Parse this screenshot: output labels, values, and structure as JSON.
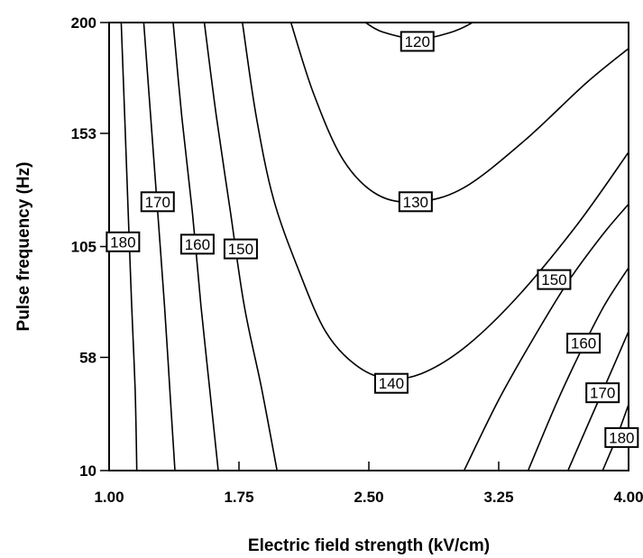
{
  "chart_data": {
    "type": "contour",
    "xlabel": "Electric field strength (kV/cm)",
    "ylabel": "Pulse frequency (Hz)",
    "xlim": [
      1.0,
      4.0
    ],
    "ylim": [
      10,
      200
    ],
    "x_ticks": [
      "1.00",
      "1.75",
      "2.50",
      "3.25",
      "4.00"
    ],
    "y_ticks": [
      "10",
      "58",
      "105",
      "153",
      "200"
    ],
    "grid": false,
    "contours": [
      {
        "level": "120",
        "label_at": [
          2.78,
          192
        ],
        "points": [
          [
            2.48,
            200
          ],
          [
            2.58,
            196
          ],
          [
            2.78,
            193
          ],
          [
            2.98,
            196
          ],
          [
            3.1,
            200
          ]
        ]
      },
      {
        "level": "130",
        "label_at": [
          2.77,
          124
        ],
        "points": [
          [
            2.05,
            200
          ],
          [
            2.18,
            170
          ],
          [
            2.35,
            142
          ],
          [
            2.55,
            127
          ],
          [
            2.78,
            124
          ],
          [
            3.05,
            130
          ],
          [
            3.4,
            150
          ],
          [
            3.75,
            174
          ],
          [
            4.0,
            189
          ]
        ]
      },
      {
        "level": "140",
        "label_at": [
          2.63,
          47
        ],
        "points": [
          [
            1.77,
            200
          ],
          [
            1.85,
            160
          ],
          [
            1.95,
            125
          ],
          [
            2.1,
            94
          ],
          [
            2.25,
            69
          ],
          [
            2.42,
            55
          ],
          [
            2.6,
            49
          ],
          [
            2.8,
            51
          ],
          [
            3.05,
            62
          ],
          [
            3.35,
            83
          ],
          [
            3.7,
            114
          ],
          [
            4.0,
            145
          ]
        ]
      },
      {
        "level": "150",
        "label_at": [
          1.76,
          104
        ],
        "points": [
          [
            1.55,
            200
          ],
          [
            1.62,
            160
          ],
          [
            1.7,
            120
          ],
          [
            1.78,
            80
          ],
          [
            1.88,
            45
          ],
          [
            1.97,
            10
          ]
        ]
      },
      {
        "level": "150",
        "label_at": [
          3.57,
          91
        ],
        "points": [
          [
            3.05,
            10
          ],
          [
            3.25,
            40
          ],
          [
            3.45,
            66
          ],
          [
            3.65,
            90
          ],
          [
            3.85,
            110
          ],
          [
            4.0,
            123
          ]
        ]
      },
      {
        "level": "160",
        "label_at": [
          1.51,
          106
        ],
        "points": [
          [
            1.37,
            200
          ],
          [
            1.42,
            160
          ],
          [
            1.48,
            120
          ],
          [
            1.53,
            80
          ],
          [
            1.58,
            45
          ],
          [
            1.63,
            10
          ]
        ]
      },
      {
        "level": "160",
        "label_at": [
          3.74,
          64
        ],
        "points": [
          [
            3.42,
            10
          ],
          [
            3.58,
            38
          ],
          [
            3.72,
            60
          ],
          [
            3.86,
            80
          ],
          [
            4.0,
            96
          ]
        ]
      },
      {
        "level": "170",
        "label_at": [
          1.28,
          124
        ],
        "points": [
          [
            1.2,
            200
          ],
          [
            1.24,
            160
          ],
          [
            1.28,
            120
          ],
          [
            1.32,
            80
          ],
          [
            1.35,
            45
          ],
          [
            1.38,
            10
          ]
        ]
      },
      {
        "level": "170",
        "label_at": [
          3.85,
          43
        ],
        "points": [
          [
            3.65,
            10
          ],
          [
            3.78,
            32
          ],
          [
            3.9,
            52
          ],
          [
            4.0,
            69
          ]
        ]
      },
      {
        "level": "180",
        "label_at": [
          1.08,
          107
        ],
        "points": [
          [
            1.07,
            200
          ],
          [
            1.09,
            160
          ],
          [
            1.11,
            120
          ],
          [
            1.13,
            80
          ],
          [
            1.15,
            45
          ],
          [
            1.16,
            10
          ]
        ]
      },
      {
        "level": "180",
        "label_at": [
          3.96,
          24
        ],
        "points": [
          [
            3.85,
            10
          ],
          [
            3.93,
            24
          ],
          [
            4.0,
            38
          ]
        ]
      }
    ]
  }
}
